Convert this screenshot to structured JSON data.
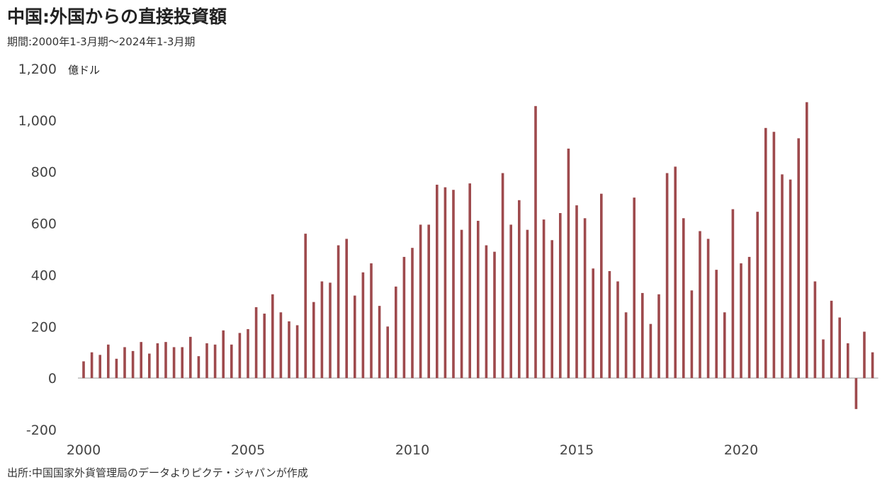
{
  "header": {
    "title": "中国:外国からの直接投資額",
    "subtitle": "期間:2000年1-3月期～2024年1-3月期"
  },
  "footer": {
    "source": "出所:中国国家外貨管理局のデータよりピクテ・ジャパンが作成"
  },
  "colors": {
    "bar": "#9e4a4d",
    "negative_tick": "#e03030",
    "axis": "#bbbbbb"
  },
  "chart_data": {
    "type": "bar",
    "title": "中国:外国からの直接投資額",
    "subtitle": "期間:2000年1-3月期～2024年1-3月期",
    "unit_label": "億ドル",
    "frequency": "quarterly",
    "start": "2000-Q1",
    "end": "2024-Q1",
    "ylim": [
      -200,
      1200
    ],
    "y_ticks": [
      -200,
      0,
      200,
      400,
      600,
      800,
      1000,
      1200
    ],
    "y_tick_labels": [
      "-200",
      "0",
      "200",
      "400",
      "600",
      "800",
      "1,000",
      "1,200"
    ],
    "x_ticks": [
      2000,
      2005,
      2010,
      2015,
      2020
    ],
    "x_tick_labels": [
      "2000",
      "2005",
      "2010",
      "2015",
      "2020"
    ],
    "grid": false,
    "values": [
      65,
      100,
      90,
      130,
      75,
      120,
      105,
      140,
      95,
      135,
      140,
      120,
      120,
      160,
      85,
      135,
      130,
      185,
      130,
      175,
      190,
      275,
      250,
      325,
      255,
      220,
      205,
      560,
      295,
      375,
      370,
      515,
      540,
      320,
      410,
      445,
      280,
      200,
      355,
      470,
      505,
      595,
      595,
      750,
      740,
      730,
      575,
      755,
      610,
      515,
      490,
      795,
      595,
      690,
      575,
      1055,
      615,
      535,
      640,
      890,
      670,
      620,
      425,
      715,
      415,
      375,
      255,
      700,
      330,
      210,
      325,
      795,
      820,
      620,
      340,
      570,
      540,
      420,
      255,
      655,
      445,
      470,
      645,
      970,
      955,
      790,
      770,
      930,
      1070,
      375,
      150,
      300,
      235,
      135,
      -120,
      180,
      100
    ]
  }
}
